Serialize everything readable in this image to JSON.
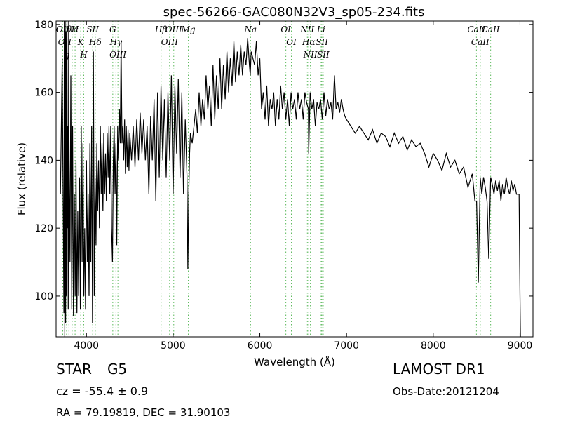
{
  "chart_data": {
    "type": "line",
    "title": "spec-56266-GAC080N32V3_sp05-234.fits",
    "xlabel": "Wavelength (Å)",
    "ylabel": "Flux (relative)",
    "xlim": [
      3650,
      9150
    ],
    "ylim": [
      88,
      181
    ],
    "xticks": [
      4000,
      5000,
      6000,
      7000,
      8000,
      9000
    ],
    "yticks": [
      100,
      120,
      140,
      160,
      180
    ],
    "grid": false,
    "series": [
      {
        "color": "#000000",
        "x": [
          3700,
          3720,
          3740,
          3745,
          3750,
          3755,
          3760,
          3765,
          3770,
          3775,
          3780,
          3785,
          3790,
          3795,
          3800,
          3810,
          3820,
          3830,
          3840,
          3850,
          3860,
          3870,
          3880,
          3890,
          3900,
          3910,
          3920,
          3930,
          3940,
          3950,
          3960,
          3970,
          3980,
          3990,
          4000,
          4010,
          4020,
          4030,
          4040,
          4050,
          4060,
          4070,
          4080,
          4090,
          4100,
          4110,
          4120,
          4130,
          4140,
          4150,
          4160,
          4170,
          4180,
          4190,
          4200,
          4210,
          4220,
          4230,
          4240,
          4250,
          4260,
          4270,
          4280,
          4290,
          4300,
          4310,
          4320,
          4330,
          4340,
          4350,
          4360,
          4370,
          4380,
          4390,
          4400,
          4410,
          4420,
          4430,
          4440,
          4450,
          4460,
          4470,
          4480,
          4490,
          4500,
          4520,
          4540,
          4560,
          4580,
          4600,
          4620,
          4640,
          4660,
          4680,
          4700,
          4720,
          4740,
          4760,
          4780,
          4800,
          4820,
          4840,
          4860,
          4880,
          4900,
          4920,
          4940,
          4960,
          4980,
          5000,
          5020,
          5040,
          5060,
          5080,
          5100,
          5120,
          5140,
          5160,
          5170,
          5180,
          5190,
          5200,
          5220,
          5240,
          5260,
          5280,
          5300,
          5320,
          5340,
          5360,
          5380,
          5400,
          5420,
          5440,
          5460,
          5480,
          5500,
          5520,
          5540,
          5560,
          5580,
          5600,
          5620,
          5640,
          5660,
          5680,
          5700,
          5720,
          5740,
          5760,
          5780,
          5800,
          5820,
          5840,
          5860,
          5880,
          5890,
          5900,
          5920,
          5940,
          5960,
          5980,
          6000,
          6020,
          6040,
          6060,
          6080,
          6100,
          6120,
          6140,
          6160,
          6180,
          6200,
          6220,
          6240,
          6260,
          6280,
          6300,
          6320,
          6340,
          6360,
          6380,
          6400,
          6420,
          6440,
          6460,
          6480,
          6500,
          6520,
          6540,
          6560,
          6563,
          6580,
          6600,
          6620,
          6640,
          6660,
          6680,
          6700,
          6720,
          6740,
          6760,
          6780,
          6800,
          6820,
          6840,
          6860,
          6880,
          6900,
          6920,
          6940,
          6960,
          6980,
          7000,
          7050,
          7100,
          7150,
          7200,
          7250,
          7300,
          7350,
          7400,
          7450,
          7500,
          7550,
          7600,
          7650,
          7700,
          7750,
          7800,
          7850,
          7900,
          7950,
          8000,
          8050,
          8100,
          8150,
          8200,
          8250,
          8300,
          8350,
          8400,
          8450,
          8480,
          8500,
          8520,
          8542,
          8560,
          8580,
          8600,
          8620,
          8640,
          8662,
          8680,
          8700,
          8720,
          8740,
          8760,
          8780,
          8800,
          8820,
          8840,
          8860,
          8880,
          8900,
          8920,
          8940,
          8960,
          8980,
          8990,
          9000,
          9005
        ],
        "values": [
          130,
          170,
          95,
          181,
          88,
          181,
          92,
          178,
          100,
          181,
          120,
          150,
          96,
          181,
          140,
          110,
          165,
          96,
          150,
          94,
          130,
          100,
          140,
          95,
          125,
          100,
          135,
          96,
          150,
          110,
          145,
          100,
          120,
          96,
          140,
          110,
          130,
          100,
          145,
          110,
          150,
          92,
          172,
          100,
          135,
          115,
          145,
          125,
          140,
          120,
          150,
          130,
          145,
          125,
          148,
          130,
          142,
          128,
          148,
          135,
          150,
          130,
          150,
          120,
          110,
          140,
          150,
          130,
          145,
          115,
          150,
          140,
          155,
          145,
          175,
          145,
          150,
          140,
          152,
          136,
          150,
          138,
          149,
          137,
          148,
          140,
          150,
          138,
          152,
          140,
          154,
          142,
          152,
          140,
          150,
          130,
          153,
          140,
          158,
          128,
          160,
          135,
          162,
          140,
          158,
          135,
          160,
          140,
          165,
          130,
          162,
          142,
          164,
          135,
          160,
          130,
          152,
          135,
          108,
          130,
          142,
          148,
          145,
          150,
          155,
          148,
          160,
          150,
          158,
          152,
          165,
          155,
          162,
          150,
          168,
          152,
          165,
          155,
          170,
          155,
          168,
          158,
          172,
          160,
          170,
          162,
          175,
          163,
          172,
          165,
          174,
          165,
          172,
          168,
          176,
          168,
          165,
          172,
          170,
          168,
          175,
          165,
          170,
          155,
          160,
          152,
          162,
          150,
          158,
          155,
          160,
          150,
          158,
          152,
          162,
          155,
          160,
          152,
          158,
          150,
          160,
          155,
          158,
          152,
          160,
          155,
          158,
          152,
          160,
          157,
          155,
          142,
          160,
          155,
          158,
          150,
          157,
          155,
          158,
          152,
          160,
          153,
          158,
          155,
          157,
          152,
          165,
          155,
          157,
          154,
          158,
          155,
          153,
          152,
          150,
          148,
          150,
          148,
          146,
          149,
          145,
          148,
          147,
          144,
          148,
          145,
          147,
          143,
          146,
          144,
          145,
          142,
          138,
          142,
          140,
          137,
          142,
          138,
          140,
          136,
          138,
          132,
          136,
          128,
          128,
          104,
          135,
          130,
          135,
          132,
          128,
          111,
          135,
          133,
          130,
          134,
          131,
          134,
          128,
          133,
          130,
          135,
          132,
          130,
          134,
          131,
          133,
          130,
          130,
          130,
          100,
          88
        ]
      }
    ],
    "line_markers": [
      {
        "wavelength": 3727,
        "label": "OII"
      },
      {
        "wavelength": 3750,
        "label": "OII"
      },
      {
        "wavelength": 3771,
        "label": "η"
      },
      {
        "wavelength": 3798,
        "label": "ϑ"
      },
      {
        "wavelength": 3835,
        "label": "Hc"
      },
      {
        "wavelength": 3869,
        "label": "H"
      },
      {
        "wavelength": 3934,
        "label": "K"
      },
      {
        "wavelength": 3969,
        "label": "H"
      },
      {
        "wavelength": 4072,
        "label": "SII"
      },
      {
        "wavelength": 4102,
        "label": "Hδ"
      },
      {
        "wavelength": 4304,
        "label": "G"
      },
      {
        "wavelength": 4340,
        "label": "Hγ"
      },
      {
        "wavelength": 4363,
        "label": "OIII"
      },
      {
        "wavelength": 4861,
        "label": "Hβ"
      },
      {
        "wavelength": 4959,
        "label": "OIII"
      },
      {
        "wavelength": 5007,
        "label": "OIII"
      },
      {
        "wavelength": 5175,
        "label": "Mg"
      },
      {
        "wavelength": 5893,
        "label": "Na"
      },
      {
        "wavelength": 6300,
        "label": "OI"
      },
      {
        "wavelength": 6364,
        "label": "OI"
      },
      {
        "wavelength": 6548,
        "label": "NII"
      },
      {
        "wavelength": 6563,
        "label": "Hα"
      },
      {
        "wavelength": 6583,
        "label": "NII"
      },
      {
        "wavelength": 6707,
        "label": "Li"
      },
      {
        "wavelength": 6716,
        "label": "SII"
      },
      {
        "wavelength": 6731,
        "label": "SII"
      },
      {
        "wavelength": 8498,
        "label": "CaII"
      },
      {
        "wavelength": 8542,
        "label": "CaII"
      },
      {
        "wavelength": 8662,
        "label": "CaII"
      }
    ]
  },
  "info": {
    "object_class": "STAR",
    "subclass": "G5",
    "redshift_line": "cz = -55.4 ± 0.9",
    "coords": "RA = 79.19819, DEC = 31.90103",
    "survey": "LAMOST DR1",
    "obs_date": "Obs-Date:20121204"
  }
}
